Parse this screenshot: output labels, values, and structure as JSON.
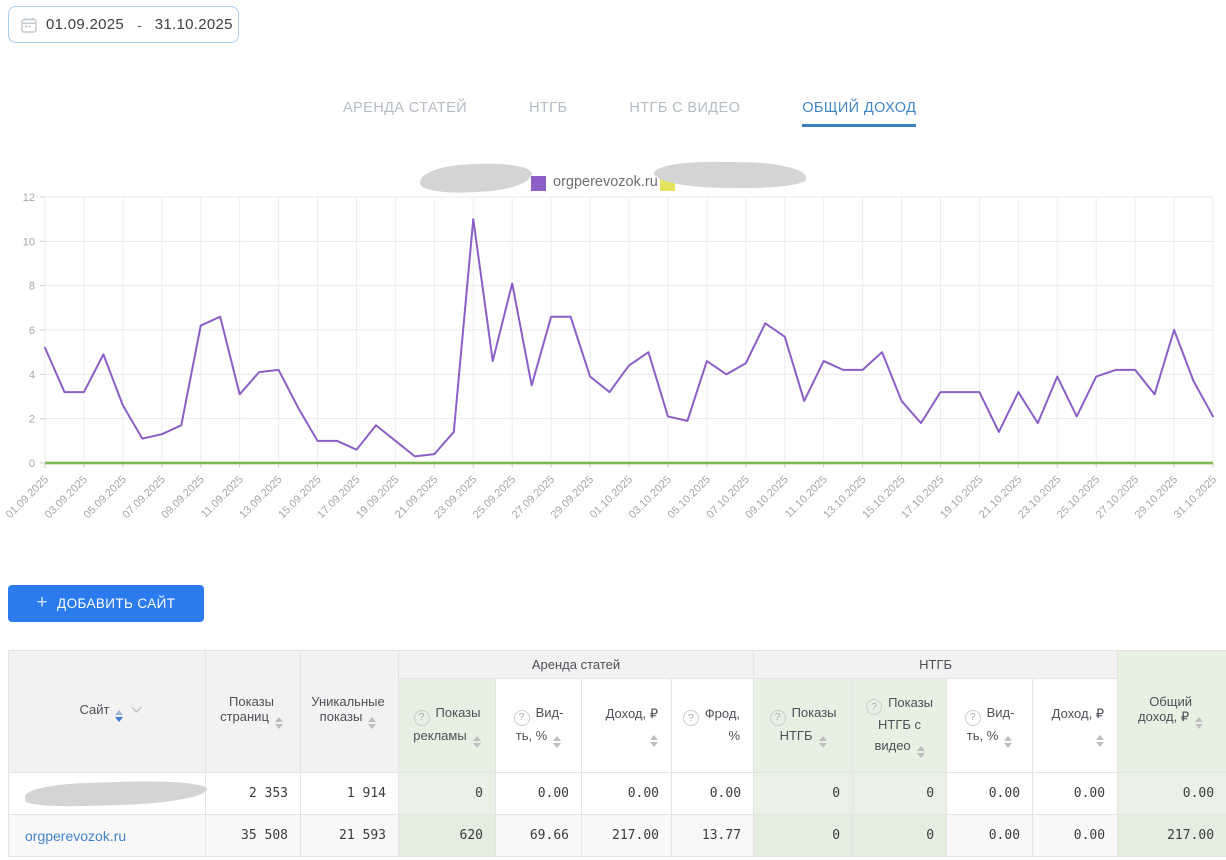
{
  "date_picker": {
    "start": "01.09.2025",
    "separator": "-",
    "end": "31.10.2025"
  },
  "tabs": [
    {
      "label": "АРЕНДА СТАТЕЙ",
      "active": false
    },
    {
      "label": "НТГБ",
      "active": false
    },
    {
      "label": "НТГБ С ВИДЕО",
      "active": false
    },
    {
      "label": "ОБЩИЙ ДОХОД",
      "active": true
    }
  ],
  "legend": {
    "items": [
      {
        "redacted": true
      },
      {
        "label": "orgperevozok.ru",
        "color": "#8c5fc6"
      },
      {
        "redacted": true,
        "color": "#e7e35e"
      }
    ]
  },
  "chart_data": {
    "type": "line",
    "title": "",
    "xlabel": "",
    "ylabel": "",
    "ylim": [
      0,
      12
    ],
    "yticks": [
      0,
      2,
      4,
      6,
      8,
      10,
      12
    ],
    "grid": true,
    "legend_position": "top",
    "x_tick_labels": [
      "01.09.2025",
      "03.09.2025",
      "05.09.2025",
      "07.09.2025",
      "09.09.2025",
      "11.09.2025",
      "13.09.2025",
      "15.09.2025",
      "17.09.2025",
      "19.09.2025",
      "21.09.2025",
      "23.09.2025",
      "25.09.2025",
      "27.09.2025",
      "29.09.2025",
      "01.10.2025",
      "03.10.2025",
      "05.10.2025",
      "07.10.2025",
      "09.10.2025",
      "11.10.2025",
      "13.10.2025",
      "15.10.2025",
      "17.10.2025",
      "19.10.2025",
      "21.10.2025",
      "23.10.2025",
      "25.10.2025",
      "27.10.2025",
      "29.10.2025",
      "31.10.2025"
    ],
    "x_range": [
      "01.09.2025",
      "31.10.2025"
    ],
    "series": [
      {
        "name": "redacted-site",
        "color": "#e7e35e",
        "constant": 0
      },
      {
        "name": "redacted-site-2",
        "color": "#7cb950",
        "constant": 0
      },
      {
        "name": "orgperevozok.ru",
        "color": "#8c5fc6",
        "values": [
          5.2,
          3.2,
          3.2,
          4.9,
          2.6,
          1.1,
          1.3,
          1.7,
          6.2,
          6.6,
          3.1,
          4.1,
          4.2,
          2.5,
          1.0,
          1.0,
          0.6,
          1.7,
          1.0,
          0.3,
          0.4,
          1.4,
          11.0,
          4.6,
          8.1,
          3.5,
          6.6,
          6.6,
          3.9,
          3.2,
          4.4,
          5.0,
          2.1,
          1.9,
          4.6,
          4.0,
          4.5,
          6.3,
          5.7,
          2.8,
          4.6,
          4.2,
          4.2,
          5.0,
          2.8,
          1.8,
          3.2,
          3.2,
          3.2,
          1.4,
          3.2,
          1.8,
          3.9,
          2.1,
          3.9,
          4.2,
          4.2,
          3.1,
          6.0,
          3.7,
          2.1
        ]
      }
    ]
  },
  "add_site_button": {
    "plus": "+",
    "label": "ДОБАВИТЬ САЙТ"
  },
  "table": {
    "group_headers": [
      {
        "label": "Аренда статей"
      },
      {
        "label": "НТГБ"
      }
    ],
    "columns": [
      {
        "label": "Сайт"
      },
      {
        "label": "Показы страниц"
      },
      {
        "label": "Уникальные показы"
      },
      {
        "label": "Показы рекламы",
        "green": true
      },
      {
        "label": "Вид-ть, %"
      },
      {
        "label": "Доход, ₽"
      },
      {
        "label": "Фрод, %"
      },
      {
        "label": "Показы НТГБ",
        "green": true
      },
      {
        "label": "Показы НТГБ с видео",
        "green": true
      },
      {
        "label": "Вид-ть, %"
      },
      {
        "label": "Доход, ₽"
      },
      {
        "label": "Общий доход, ₽",
        "green": true
      }
    ],
    "green_columns": [
      3,
      7,
      8,
      11
    ],
    "rows": [
      {
        "site_redacted": true,
        "site": "",
        "values": [
          "2 353",
          "1 914",
          "0",
          "0.00",
          "0.00",
          "0.00",
          "0",
          "0",
          "0.00",
          "0.00",
          "0.00"
        ]
      },
      {
        "site_redacted": false,
        "site": "orgperevozok.ru",
        "values": [
          "35 508",
          "21 593",
          "620",
          "69.66",
          "217.00",
          "13.77",
          "0",
          "0",
          "0.00",
          "0.00",
          "217.00"
        ]
      }
    ]
  }
}
